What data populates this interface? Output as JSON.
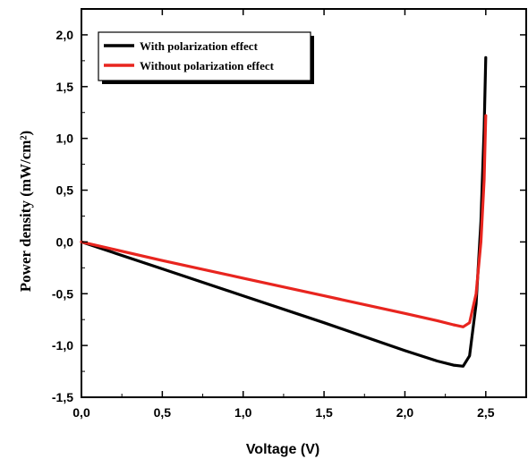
{
  "chart_data": {
    "type": "line",
    "xlabel": "Voltage (V)",
    "ylabel": "Power density (mW/cm²)",
    "xlim": [
      0,
      2.75
    ],
    "ylim": [
      -1.5,
      2.25
    ],
    "xticks": [
      0.0,
      0.5,
      1.0,
      1.5,
      2.0,
      2.5
    ],
    "xtick_labels": [
      "0,0",
      "0,5",
      "1,0",
      "1,5",
      "2,0",
      "2,5"
    ],
    "yticks": [
      -1.5,
      -1.0,
      -0.5,
      0.0,
      0.5,
      1.0,
      1.5,
      2.0
    ],
    "ytick_labels": [
      "-1,5",
      "-1,0",
      "-0,5",
      "0,0",
      "0,5",
      "1,0",
      "1,5",
      "2,0"
    ],
    "grid": false,
    "legend_position": "top-left",
    "series": [
      {
        "name": "With polarization effect",
        "color": "#000000",
        "x": [
          0.0,
          0.5,
          1.0,
          1.5,
          2.0,
          2.2,
          2.3,
          2.36,
          2.4,
          2.44,
          2.47,
          2.49,
          2.5
        ],
        "y": [
          0.0,
          -0.26,
          -0.52,
          -0.78,
          -1.05,
          -1.15,
          -1.19,
          -1.2,
          -1.1,
          -0.6,
          0.2,
          1.1,
          1.78
        ]
      },
      {
        "name": "Without polarization effect",
        "color": "#e8251f",
        "x": [
          0.0,
          0.5,
          1.0,
          1.5,
          2.0,
          2.2,
          2.3,
          2.36,
          2.4,
          2.44,
          2.47,
          2.49,
          2.5
        ],
        "y": [
          0.0,
          -0.18,
          -0.35,
          -0.52,
          -0.69,
          -0.76,
          -0.8,
          -0.82,
          -0.78,
          -0.5,
          0.0,
          0.6,
          1.22
        ]
      }
    ]
  }
}
